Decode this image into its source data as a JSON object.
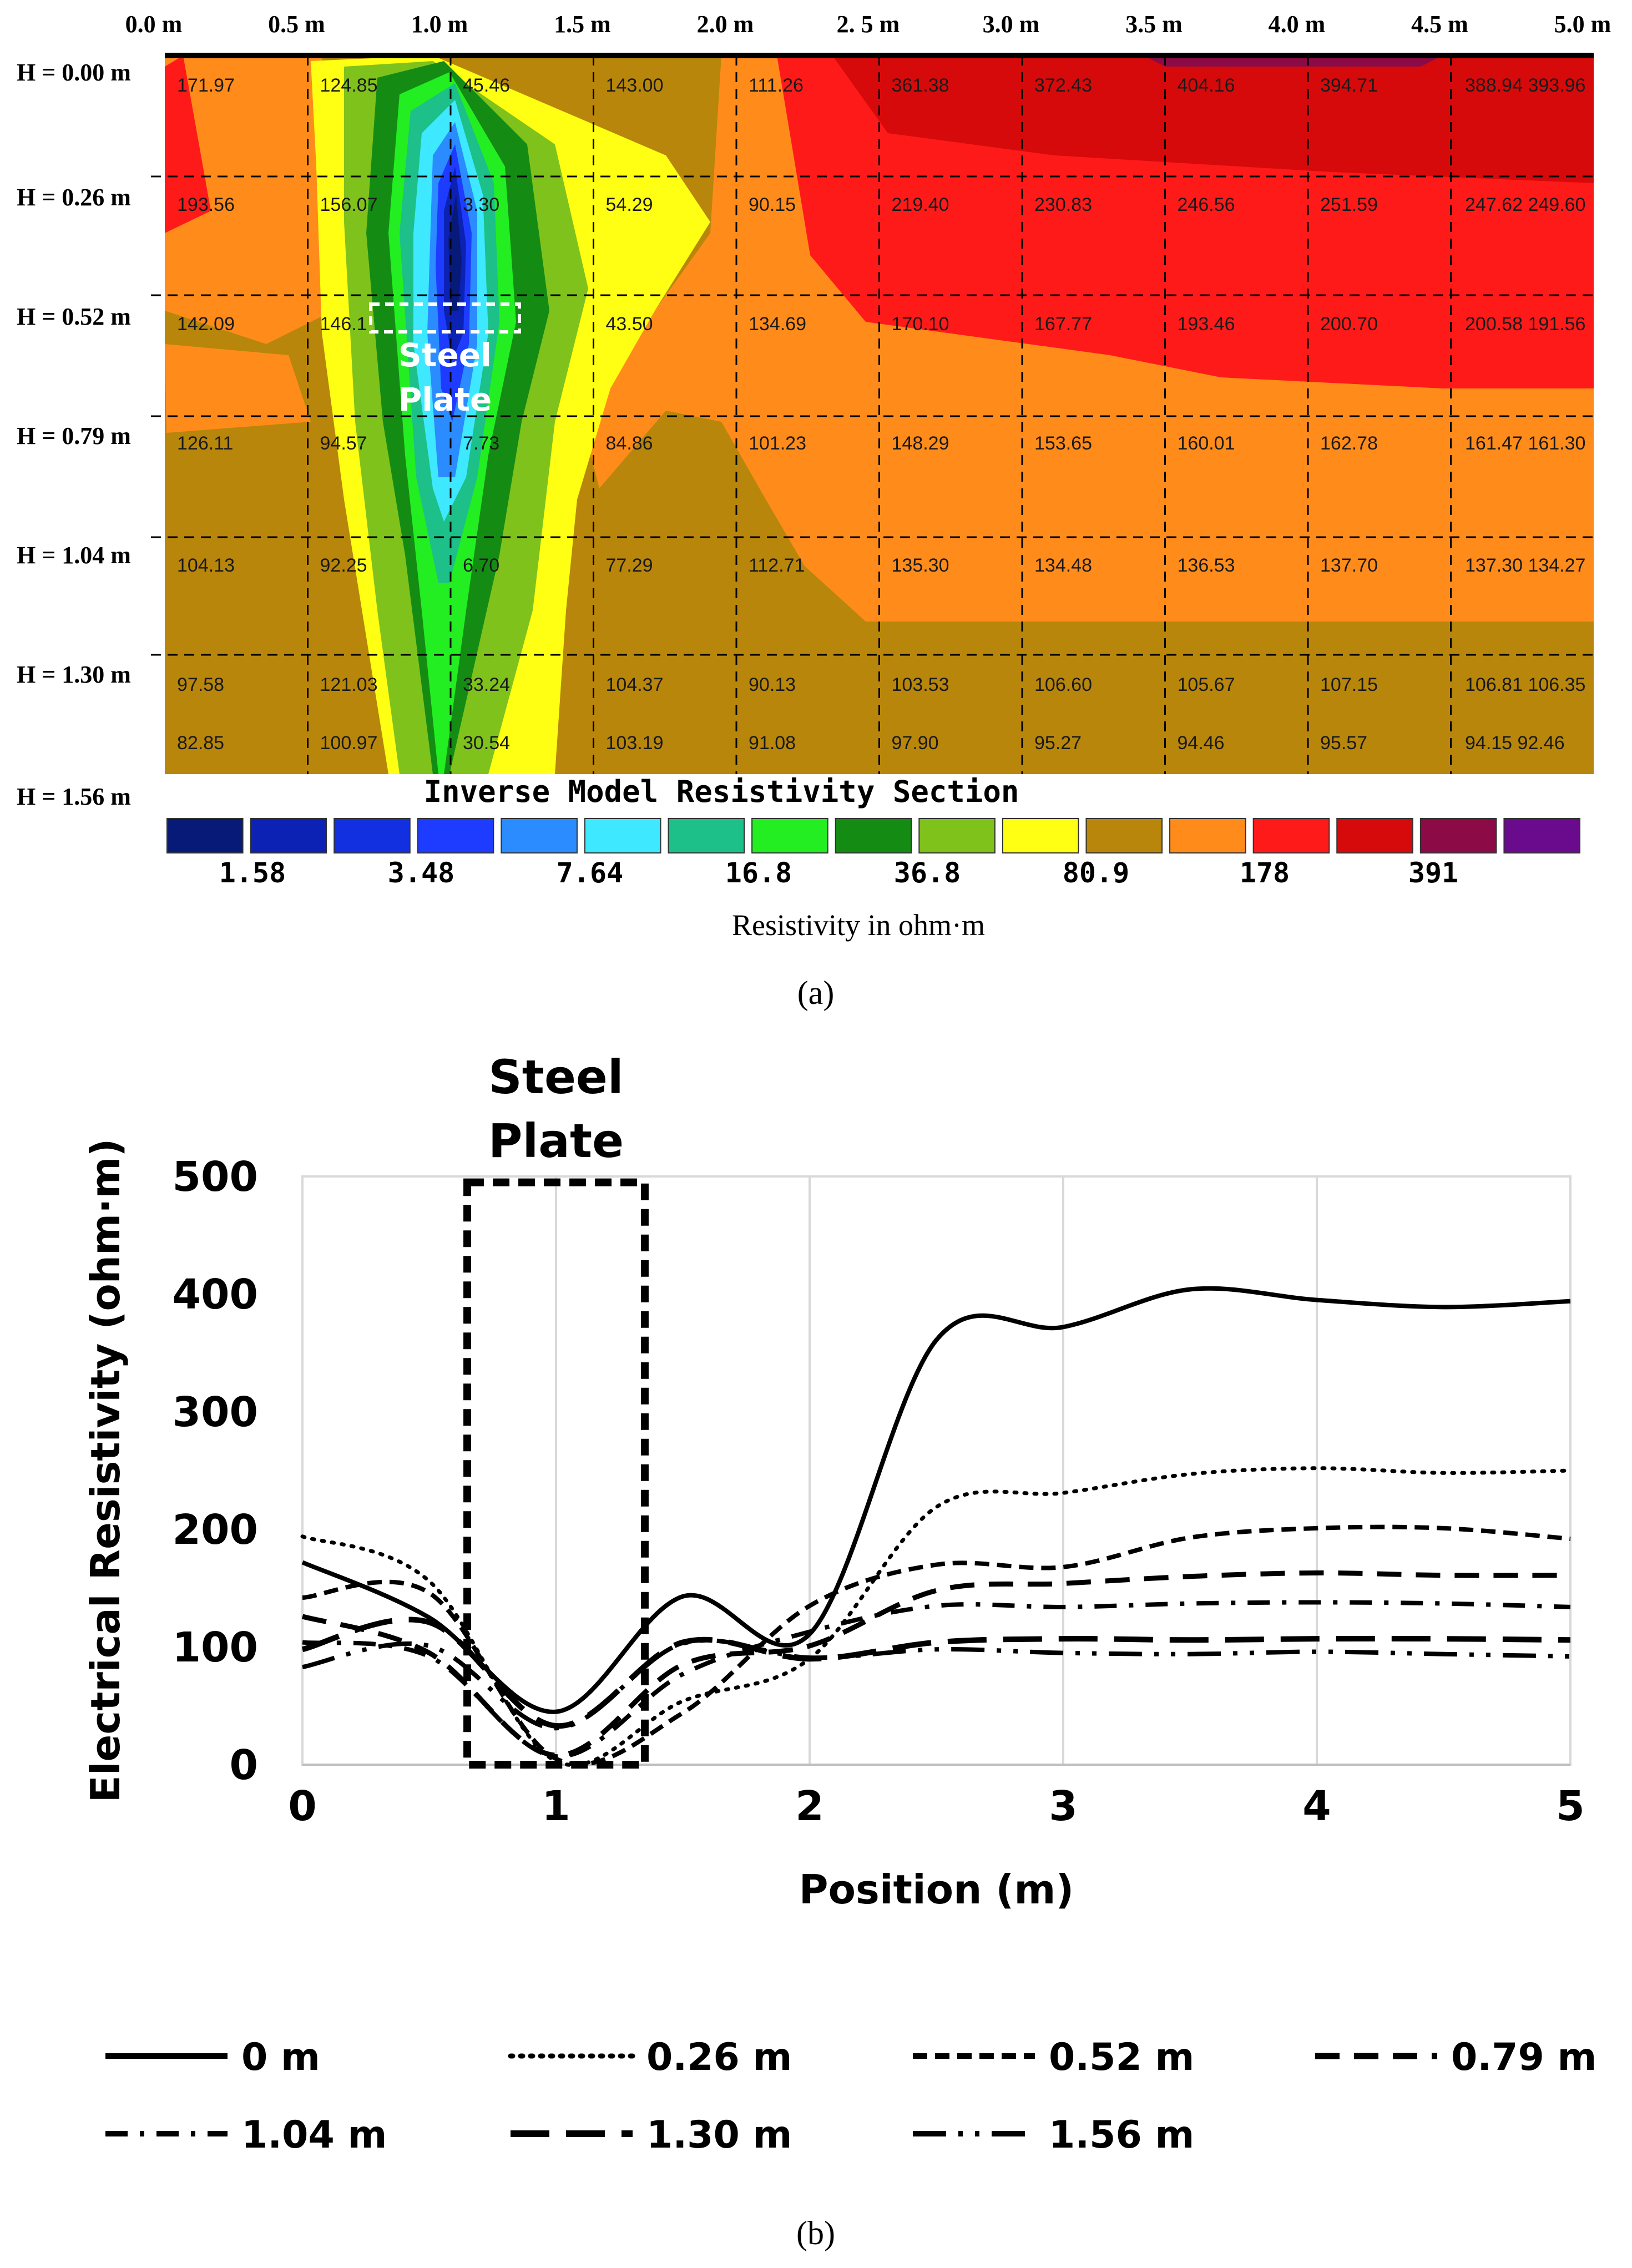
{
  "panel_a": {
    "caption": "(a)",
    "title": "Inverse Model Resistivity Section",
    "colorbar_label": "Resistivity in ohm·m",
    "annotation": "Steel Plate",
    "x_ticks": [
      "0.0 m",
      "0.5 m",
      "1.0 m",
      "1.5 m",
      "2.0 m",
      "2. 5 m",
      "3.0 m",
      "3.5 m",
      "4.0 m",
      "4.5 m",
      "5.0 m"
    ],
    "depth_labels": [
      "H = 0.00 m",
      "H = 0.26 m",
      "H = 0.52 m",
      "H = 0.79 m",
      "H = 1.04 m",
      "H = 1.30 m",
      "H = 1.56 m"
    ],
    "colorbar_ticks": [
      "1.58",
      "3.48",
      "7.64",
      "16.8",
      "36.8",
      "80.9",
      "178",
      "391"
    ],
    "colorbar_colors": [
      "#081a78",
      "#0b22b5",
      "#1230e0",
      "#1d3cff",
      "#2a8cff",
      "#3ee8ff",
      "#1cc088",
      "#22ee22",
      "#148c14",
      "#7fc21c",
      "#ffff14",
      "#b8860b",
      "#ff8c1a",
      "#ff1a1a",
      "#d60a0a",
      "#8c0a46",
      "#6a0a8c"
    ],
    "cells": [
      [
        "171.97",
        "124.85",
        "45.46",
        "143.00",
        "111.26",
        "361.38",
        "372.43",
        "404.16",
        "394.71",
        "388.94 393.96"
      ],
      [
        "193.56",
        "156.07",
        "3.30",
        "54.29",
        "90.15",
        "219.40",
        "230.83",
        "246.56",
        "251.59",
        "247.62 249.60"
      ],
      [
        "142.09",
        "146.1",
        "",
        "43.50",
        "134.69",
        "170.10",
        "167.77",
        "193.46",
        "200.70",
        "200.58 191.56"
      ],
      [
        "126.11",
        "94.57",
        "7.73",
        "84.86",
        "101.23",
        "148.29",
        "153.65",
        "160.01",
        "162.78",
        "161.47 161.30"
      ],
      [
        "104.13",
        "92.25",
        "6.70",
        "77.29",
        "112.71",
        "135.30",
        "134.48",
        "136.53",
        "137.70",
        "137.30 134.27"
      ],
      [
        "97.58",
        "121.03",
        "33.24",
        "104.37",
        "90.13",
        "103.53",
        "106.60",
        "105.67",
        "107.15",
        "106.81 106.35"
      ],
      [
        "82.85",
        "100.97",
        "30.54",
        "103.19",
        "91.08",
        "97.90",
        "95.27",
        "94.46",
        "95.57",
        "94.15 92.46"
      ]
    ]
  },
  "panel_b": {
    "caption": "(b)",
    "annotation": "Steel Plate",
    "chart_data": {
      "type": "line",
      "title": "",
      "xlabel": "Position (m)",
      "ylabel": "Electrical Resistivity (ohm·m)",
      "xlim": [
        0,
        5
      ],
      "ylim": [
        0,
        500
      ],
      "x_ticks": [
        "0",
        "1",
        "2",
        "3",
        "4",
        "5"
      ],
      "y_ticks": [
        "0",
        "100",
        "200",
        "300",
        "400",
        "500"
      ],
      "grid": "vertical",
      "x": [
        0,
        0.5,
        1.0,
        1.5,
        2.0,
        2.5,
        3.0,
        3.5,
        4.0,
        4.5,
        5.0
      ],
      "series": [
        {
          "name": "0 m",
          "values": [
            172,
            125,
            45,
            143,
            111,
            361,
            372,
            404,
            395,
            389,
            394
          ],
          "dash": "solid"
        },
        {
          "name": "0.26 m",
          "values": [
            194,
            156,
            3,
            54,
            90,
            219,
            231,
            247,
            252,
            248,
            250
          ],
          "dash": "dot"
        },
        {
          "name": "0.52 m",
          "values": [
            142,
            146,
            5,
            44,
            135,
            170,
            168,
            193,
            201,
            201,
            192
          ],
          "dash": "short-dash"
        },
        {
          "name": "0.79 m",
          "values": [
            126,
            95,
            8,
            85,
            101,
            148,
            154,
            160,
            163,
            161,
            161
          ],
          "dash": "long-dash"
        },
        {
          "name": "1.04 m",
          "values": [
            104,
            92,
            7,
            77,
            113,
            135,
            134,
            137,
            138,
            137,
            134
          ],
          "dash": "dash-dot"
        },
        {
          "name": "1.30 m",
          "values": [
            98,
            121,
            33,
            104,
            90,
            104,
            107,
            106,
            107,
            107,
            106
          ],
          "dash": "long-long-dash"
        },
        {
          "name": "1.56 m",
          "values": [
            83,
            101,
            31,
            103,
            91,
            98,
            95,
            94,
            96,
            94,
            92
          ],
          "dash": "long-dash-dot-dot"
        }
      ],
      "legend": "bottom",
      "highlight_region": {
        "label": "Steel Plate",
        "x_from": 0.65,
        "x_to": 1.35,
        "y_from": 0,
        "y_to": 495
      }
    }
  }
}
